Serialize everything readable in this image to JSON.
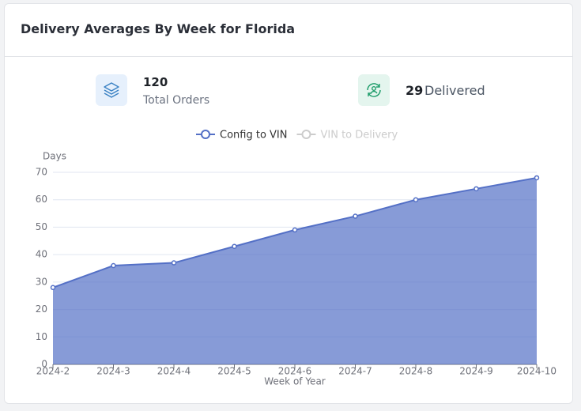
{
  "header": {
    "title": "Delivery Averages By Week for Florida"
  },
  "stats": [
    {
      "value": "120",
      "label": "Total Orders"
    },
    {
      "value": "29",
      "label": "Delivered"
    }
  ],
  "chart_data": {
    "type": "area",
    "xlabel": "Week of Year",
    "ylabel": "Days",
    "categories": [
      "2024-2",
      "2024-3",
      "2024-4",
      "2024-5",
      "2024-6",
      "2024-7",
      "2024-8",
      "2024-9",
      "2024-10"
    ],
    "series": [
      {
        "name": "Config to VIN",
        "color": "#5470c6",
        "visible": true,
        "values": [
          28,
          36,
          37,
          43,
          49,
          54,
          60,
          64,
          68
        ]
      },
      {
        "name": "VIN to Delivery",
        "color": "#91cc75",
        "visible": false,
        "values": [
          null,
          null,
          null,
          null,
          null,
          null,
          null,
          null,
          null
        ]
      }
    ],
    "ylim": [
      0,
      70
    ],
    "yticks": [
      0,
      10,
      20,
      30,
      40,
      50,
      60,
      70
    ],
    "grid": true
  }
}
